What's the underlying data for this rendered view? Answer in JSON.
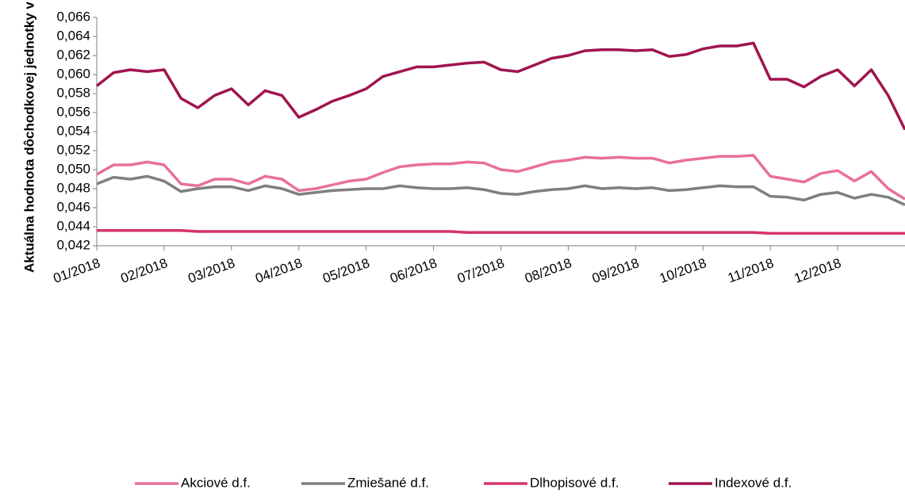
{
  "chart_data": {
    "type": "line",
    "ylabel": "Aktuálna hodnota dôchodkovej jednotky v €",
    "x": [
      0,
      0.25,
      0.5,
      0.75,
      1,
      1.25,
      1.5,
      1.75,
      2,
      2.25,
      2.5,
      2.75,
      3,
      3.25,
      3.5,
      3.75,
      4,
      4.25,
      4.5,
      4.75,
      5,
      5.25,
      5.5,
      5.75,
      6,
      6.25,
      6.5,
      6.75,
      7,
      7.25,
      7.5,
      7.75,
      8,
      8.25,
      8.5,
      8.75,
      9,
      9.25,
      9.5,
      9.75,
      10,
      10.25,
      10.5,
      10.75,
      11,
      11.25,
      11.5,
      11.75,
      12
    ],
    "xlim": [
      0,
      12
    ],
    "xticks": [
      {
        "value": 0,
        "label": "01/2018"
      },
      {
        "value": 1,
        "label": "02/2018"
      },
      {
        "value": 2,
        "label": "03/2018"
      },
      {
        "value": 3,
        "label": "04/2018"
      },
      {
        "value": 4,
        "label": "05/2018"
      },
      {
        "value": 5,
        "label": "06/2018"
      },
      {
        "value": 6,
        "label": "07/2018"
      },
      {
        "value": 7,
        "label": "08/2018"
      },
      {
        "value": 8,
        "label": "09/2018"
      },
      {
        "value": 9,
        "label": "10/2018"
      },
      {
        "value": 10,
        "label": "11/2018"
      },
      {
        "value": 11,
        "label": "12/2018"
      }
    ],
    "ylim": [
      0.042,
      0.066
    ],
    "yticks": [
      {
        "value": 0.042,
        "label": "0,042"
      },
      {
        "value": 0.044,
        "label": "0,044"
      },
      {
        "value": 0.046,
        "label": "0,046"
      },
      {
        "value": 0.048,
        "label": "0,048"
      },
      {
        "value": 0.05,
        "label": "0,050"
      },
      {
        "value": 0.052,
        "label": "0,052"
      },
      {
        "value": 0.054,
        "label": "0,054"
      },
      {
        "value": 0.056,
        "label": "0,056"
      },
      {
        "value": 0.058,
        "label": "0,058"
      },
      {
        "value": 0.06,
        "label": "0,060"
      },
      {
        "value": 0.062,
        "label": "0,062"
      },
      {
        "value": 0.064,
        "label": "0,064"
      },
      {
        "value": 0.066,
        "label": "0,066"
      }
    ],
    "grid": false,
    "legend": "bottom",
    "series": [
      {
        "name": "Akciové d.f.",
        "color": "#e8709a",
        "values": [
          0.0495,
          0.0505,
          0.0505,
          0.0508,
          0.0505,
          0.0485,
          0.0483,
          0.049,
          0.049,
          0.0485,
          0.0493,
          0.049,
          0.0478,
          0.048,
          0.0484,
          0.0488,
          0.049,
          0.0497,
          0.0503,
          0.0505,
          0.0506,
          0.0506,
          0.0508,
          0.0507,
          0.05,
          0.0498,
          0.0503,
          0.0508,
          0.051,
          0.0513,
          0.0512,
          0.0513,
          0.0512,
          0.0512,
          0.0507,
          0.051,
          0.0512,
          0.0514,
          0.0514,
          0.0515,
          0.0493,
          0.049,
          0.0487,
          0.0496,
          0.0499,
          0.0488,
          0.0498,
          0.048,
          0.0469
        ]
      },
      {
        "name": "Zmiešané d.f.",
        "color": "#7f7f7f",
        "values": [
          0.0485,
          0.0492,
          0.049,
          0.0493,
          0.0488,
          0.0477,
          0.048,
          0.0482,
          0.0482,
          0.0478,
          0.0483,
          0.048,
          0.0474,
          0.0476,
          0.0478,
          0.0479,
          0.048,
          0.048,
          0.0483,
          0.0481,
          0.048,
          0.048,
          0.0481,
          0.0479,
          0.0475,
          0.0474,
          0.0477,
          0.0479,
          0.048,
          0.0483,
          0.048,
          0.0481,
          0.048,
          0.0481,
          0.0478,
          0.0479,
          0.0481,
          0.0483,
          0.0482,
          0.0482,
          0.0472,
          0.0471,
          0.0468,
          0.0474,
          0.0476,
          0.047,
          0.0474,
          0.0471,
          0.0463
        ]
      },
      {
        "name": "Dlhopisové d.f.",
        "color": "#d6336c",
        "values": [
          0.0436,
          0.0436,
          0.0436,
          0.0436,
          0.0436,
          0.0436,
          0.0435,
          0.0435,
          0.0435,
          0.0435,
          0.0435,
          0.0435,
          0.0435,
          0.0435,
          0.0435,
          0.0435,
          0.0435,
          0.0435,
          0.0435,
          0.0435,
          0.0435,
          0.0435,
          0.0434,
          0.0434,
          0.0434,
          0.0434,
          0.0434,
          0.0434,
          0.0434,
          0.0434,
          0.0434,
          0.0434,
          0.0434,
          0.0434,
          0.0434,
          0.0434,
          0.0434,
          0.0434,
          0.0434,
          0.0434,
          0.0433,
          0.0433,
          0.0433,
          0.0433,
          0.0433,
          0.0433,
          0.0433,
          0.0433,
          0.0433
        ]
      },
      {
        "name": "Indexové d.f.",
        "color": "#a0144f",
        "values": [
          0.0588,
          0.0602,
          0.0605,
          0.0603,
          0.0605,
          0.0575,
          0.0565,
          0.0578,
          0.0585,
          0.0568,
          0.0583,
          0.0578,
          0.0555,
          0.0563,
          0.0572,
          0.0578,
          0.0585,
          0.0598,
          0.0603,
          0.0608,
          0.0608,
          0.061,
          0.0612,
          0.0613,
          0.0605,
          0.0603,
          0.061,
          0.0617,
          0.062,
          0.0625,
          0.0626,
          0.0626,
          0.0625,
          0.0626,
          0.0619,
          0.0621,
          0.0627,
          0.063,
          0.063,
          0.0633,
          0.0595,
          0.0595,
          0.0587,
          0.0598,
          0.0605,
          0.0588,
          0.0605,
          0.0578,
          0.0542
        ]
      }
    ]
  }
}
